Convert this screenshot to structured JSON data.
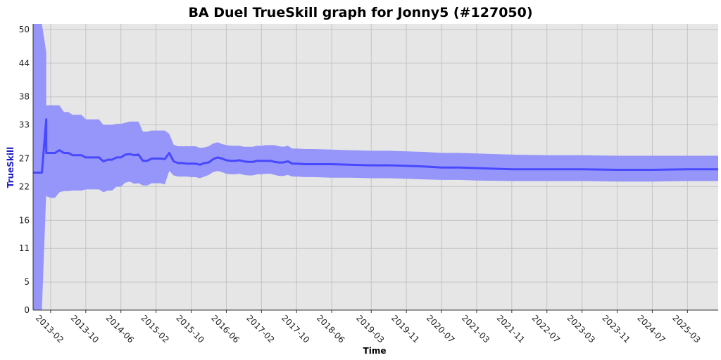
{
  "chart_data": {
    "type": "line",
    "title": "BA Duel TrueSkill graph for Jonny5 (#127050)",
    "xlabel": "Time",
    "ylabel": "TrueSkill",
    "ylim": [
      0,
      51
    ],
    "yticks": [
      0,
      5,
      11,
      16,
      22,
      27,
      33,
      38,
      44,
      50
    ],
    "xlim": [
      "2012-10",
      "2025-10"
    ],
    "xticks": [
      "2013-02",
      "2013-10",
      "2014-06",
      "2015-02",
      "2015-10",
      "2016-06",
      "2017-02",
      "2017-10",
      "2018-06",
      "2019-03",
      "2019-11",
      "2020-07",
      "2021-03",
      "2021-11",
      "2022-07",
      "2023-03",
      "2023-11",
      "2024-07",
      "2025-03"
    ],
    "grid": true,
    "colors": {
      "plot_bg": "#e6e6e6",
      "band": "#9696fa",
      "line": "#4848ff",
      "ylabel": "#2020c8",
      "grid": "#c4c4c4"
    },
    "series": [
      {
        "role": "mean",
        "x": [
          "2012-10",
          "2012-12",
          "2013-01",
          "2013-01",
          "2013-02",
          "2013-03",
          "2013-04",
          "2013-05",
          "2013-06",
          "2013-07",
          "2013-08",
          "2013-09",
          "2013-10",
          "2013-11",
          "2013-12",
          "2014-01",
          "2014-02",
          "2014-03",
          "2014-04",
          "2014-05",
          "2014-06",
          "2014-07",
          "2014-08",
          "2014-09",
          "2014-10",
          "2014-11",
          "2014-12",
          "2015-01",
          "2015-02",
          "2015-03",
          "2015-04",
          "2015-05",
          "2015-06",
          "2015-07",
          "2015-08",
          "2015-09",
          "2015-10",
          "2015-11",
          "2015-12",
          "2016-01",
          "2016-02",
          "2016-03",
          "2016-04",
          "2016-05",
          "2016-06",
          "2016-07",
          "2016-08",
          "2016-09",
          "2016-10",
          "2016-11",
          "2016-12",
          "2017-01",
          "2017-02",
          "2017-03",
          "2017-04",
          "2017-05",
          "2017-06",
          "2017-07",
          "2017-08",
          "2017-09",
          "2017-10",
          "2017-12",
          "2018-02",
          "2018-06",
          "2018-10",
          "2019-03",
          "2019-07",
          "2019-11",
          "2020-03",
          "2020-07",
          "2020-11",
          "2021-03",
          "2021-11",
          "2022-07",
          "2023-03",
          "2023-11",
          "2024-07",
          "2025-03",
          "2025-10"
        ],
        "y": [
          24.5,
          24.5,
          34,
          28,
          28,
          28,
          28.5,
          28,
          28,
          27.6,
          27.6,
          27.6,
          27.2,
          27.2,
          27.2,
          27.2,
          26.5,
          26.8,
          26.8,
          27.2,
          27.2,
          27.7,
          27.8,
          27.6,
          27.7,
          26.6,
          26.6,
          27,
          27,
          27,
          26.9,
          28,
          26.5,
          26.2,
          26.2,
          26.1,
          26.1,
          26.1,
          25.9,
          26.2,
          26.3,
          26.9,
          27.2,
          27,
          26.7,
          26.6,
          26.6,
          26.7,
          26.5,
          26.4,
          26.4,
          26.6,
          26.6,
          26.6,
          26.6,
          26.4,
          26.3,
          26.3,
          26.5,
          26.1,
          26.1,
          26,
          26,
          26,
          25.9,
          25.8,
          25.8,
          25.7,
          25.6,
          25.4,
          25.4,
          25.3,
          25.1,
          25.1,
          25.1,
          25,
          25,
          25.1,
          25.1
        ]
      },
      {
        "role": "upper",
        "y": [
          51,
          51,
          46,
          36.5,
          36.5,
          36.5,
          36.5,
          35.3,
          35.3,
          34.8,
          34.8,
          34.8,
          34,
          34,
          34,
          34,
          33,
          33,
          33,
          33.2,
          33.2,
          33.4,
          33.6,
          33.6,
          33.6,
          31.8,
          31.8,
          32,
          32,
          32,
          32,
          31.4,
          29.5,
          29.2,
          29.2,
          29.2,
          29.2,
          29.2,
          28.9,
          29,
          29.2,
          29.7,
          29.9,
          29.6,
          29.4,
          29.3,
          29.3,
          29.3,
          29.1,
          29.1,
          29.1,
          29.3,
          29.3,
          29.4,
          29.4,
          29.4,
          29.2,
          29.1,
          29.3,
          28.8,
          28.8,
          28.7,
          28.7,
          28.6,
          28.5,
          28.4,
          28.4,
          28.3,
          28.2,
          28.0,
          28.0,
          27.9,
          27.7,
          27.6,
          27.6,
          27.5,
          27.5,
          27.5,
          27.5
        ]
      },
      {
        "role": "lower",
        "y": [
          0,
          0,
          21,
          20.3,
          20,
          20,
          21,
          21.2,
          21.2,
          21.3,
          21.3,
          21.3,
          21.5,
          21.5,
          21.5,
          21.5,
          21,
          21.3,
          21.3,
          22,
          22,
          22.7,
          22.9,
          22.5,
          22.6,
          22.2,
          22.2,
          22.6,
          22.6,
          22.6,
          22.4,
          24.8,
          24,
          23.8,
          23.8,
          23.8,
          23.7,
          23.7,
          23.5,
          23.8,
          24.1,
          24.6,
          24.8,
          24.6,
          24.3,
          24.2,
          24.2,
          24.3,
          24.1,
          24,
          24,
          24.2,
          24.2,
          24.3,
          24.3,
          24.1,
          23.9,
          23.9,
          24.1,
          23.8,
          23.8,
          23.7,
          23.7,
          23.6,
          23.6,
          23.5,
          23.5,
          23.4,
          23.3,
          23.2,
          23.2,
          23.1,
          23,
          23,
          23,
          22.9,
          22.9,
          23,
          23
        ]
      }
    ]
  }
}
